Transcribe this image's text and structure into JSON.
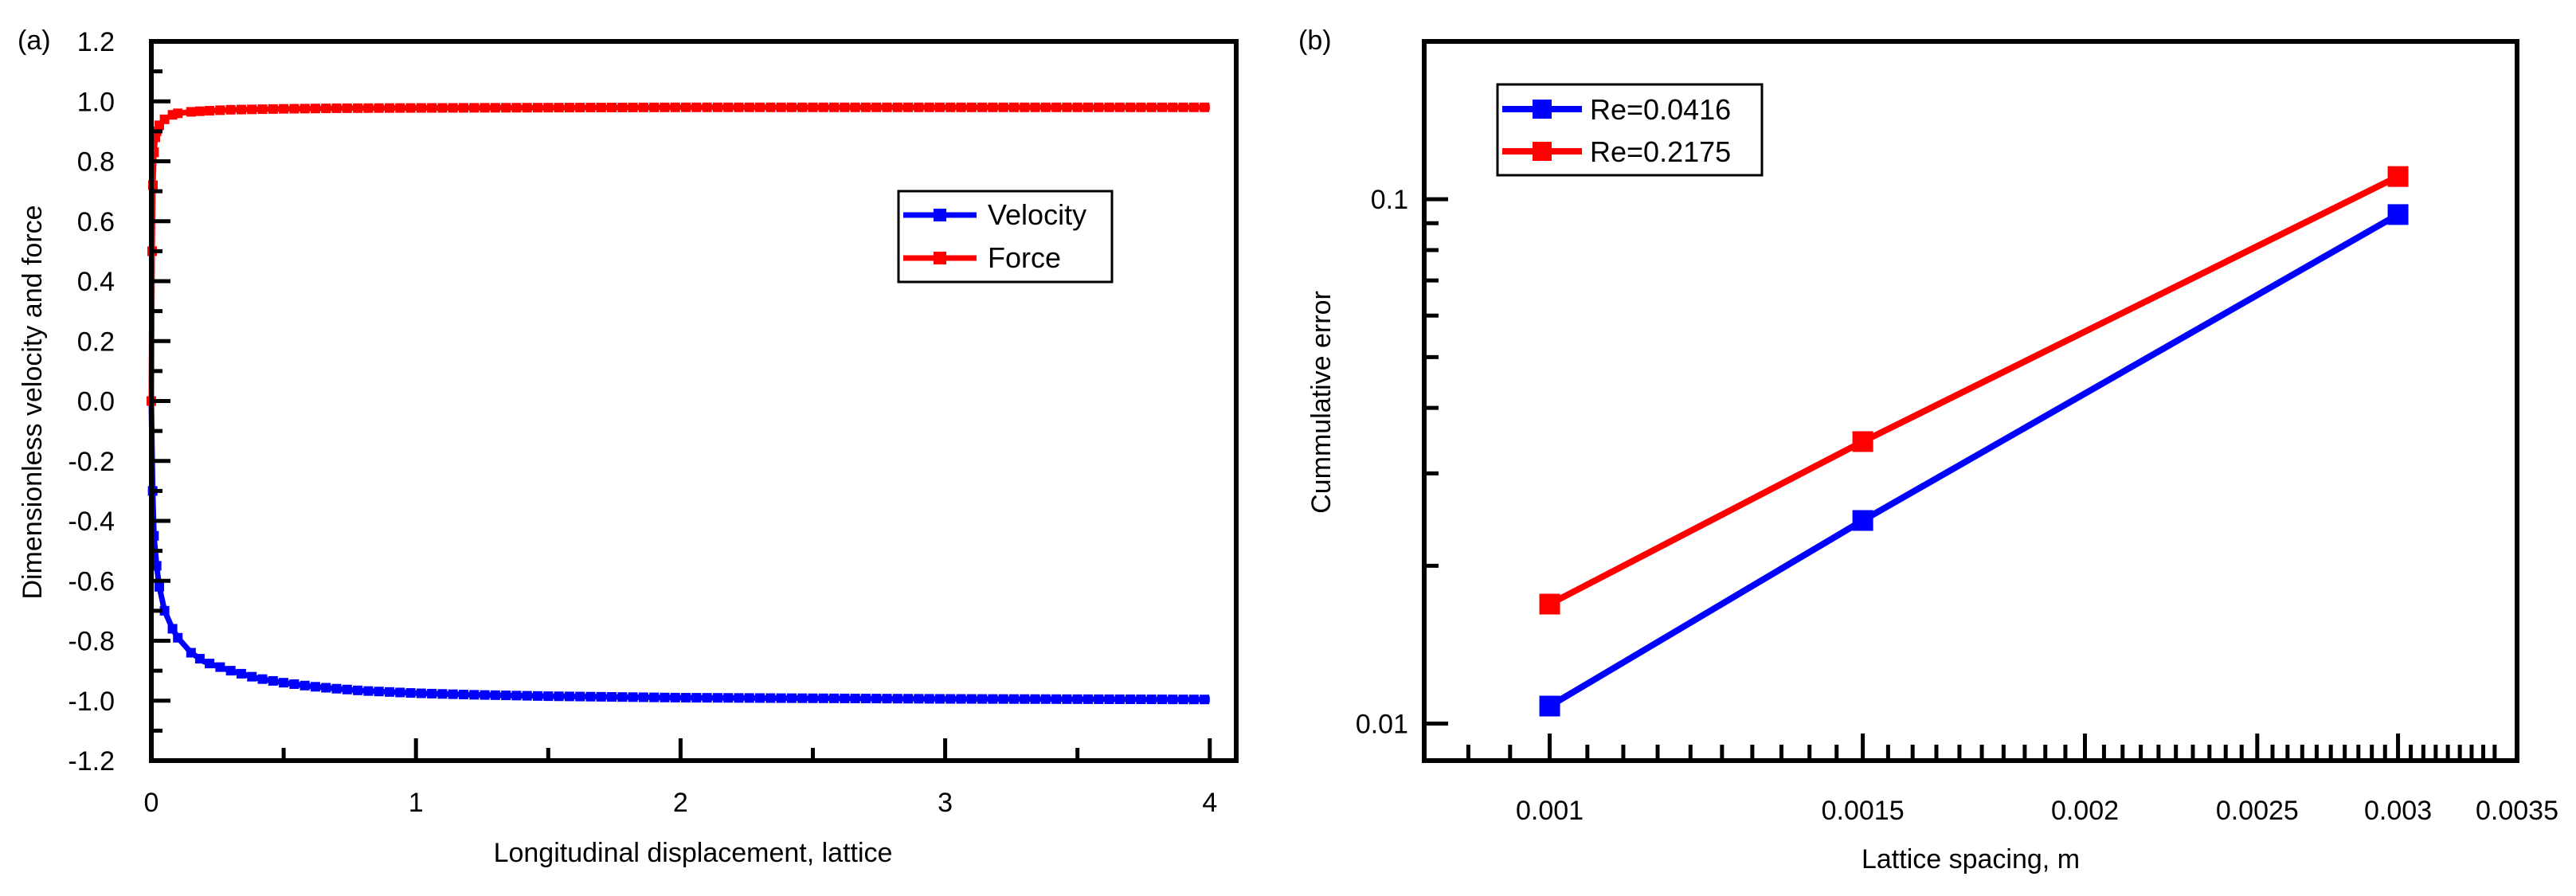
{
  "chart_data": [
    {
      "panel_label": "(a)",
      "type": "line",
      "title": "",
      "xlabel": "Longitudinal displacement, lattice",
      "ylabel": "Dimensionless velocity and force",
      "xlim": [
        0,
        4.1
      ],
      "ylim": [
        -1.2,
        1.2
      ],
      "xticks": [
        0,
        1,
        2,
        3,
        4
      ],
      "yticks": [
        1.2,
        1.0,
        0.8,
        0.6,
        0.4,
        0.2,
        0.0,
        -0.2,
        -0.4,
        -0.6,
        -0.8,
        -1.0,
        -1.2
      ],
      "ytick_labels": [
        "1.2",
        "1.0",
        "0.8",
        "0.6",
        "0.4",
        "0.2",
        "0.0",
        "-0.2",
        "-0.4",
        "-0.6",
        "-0.8",
        "-1.0",
        "-1.2"
      ],
      "grid": false,
      "legend_position": "center-right",
      "series": [
        {
          "name": "Velocity",
          "color": "#0000ff",
          "marker": "square",
          "x": [
            0,
            0.005,
            0.01,
            0.02,
            0.03,
            0.05,
            0.08,
            0.1,
            0.15,
            0.2,
            0.3,
            0.4,
            0.5,
            0.6,
            0.7,
            0.8,
            1.0,
            1.2,
            1.5,
            2.0,
            2.5,
            3.0,
            3.5,
            4.0
          ],
          "values": [
            0,
            -0.3,
            -0.45,
            -0.55,
            -0.62,
            -0.7,
            -0.76,
            -0.79,
            -0.84,
            -0.87,
            -0.9,
            -0.925,
            -0.94,
            -0.952,
            -0.96,
            -0.967,
            -0.975,
            -0.98,
            -0.985,
            -0.99,
            -0.992,
            -0.994,
            -0.995,
            -0.996
          ]
        },
        {
          "name": "Force",
          "color": "#ff0000",
          "marker": "square",
          "x": [
            0,
            0.003,
            0.006,
            0.01,
            0.015,
            0.02,
            0.03,
            0.05,
            0.08,
            0.1,
            0.15,
            0.2,
            0.3,
            0.5,
            0.7,
            1.0,
            1.5,
            2.0,
            2.5,
            3.0,
            3.5,
            4.0
          ],
          "values": [
            0,
            0.5,
            0.72,
            0.83,
            0.88,
            0.9,
            0.92,
            0.94,
            0.955,
            0.96,
            0.965,
            0.968,
            0.972,
            0.975,
            0.977,
            0.978,
            0.979,
            0.98,
            0.98,
            0.98,
            0.98,
            0.98
          ]
        }
      ]
    },
    {
      "panel_label": "(b)",
      "type": "line",
      "title": "",
      "xlabel": "Lattice spacing, m",
      "ylabel": "Cummulative error",
      "x_scale": "log",
      "y_scale": "log",
      "xlim": [
        0.00085,
        0.0035
      ],
      "ylim": [
        0.0085,
        0.2
      ],
      "xticks": [
        0.001,
        0.0015,
        0.002,
        0.0025,
        0.003,
        0.0035
      ],
      "xtick_labels": [
        "0.001",
        "0.0015",
        "0.002",
        "0.0025",
        "0.003",
        "0.0035"
      ],
      "yticks": [
        0.01,
        0.1
      ],
      "ytick_labels": [
        "0.01",
        "0.1"
      ],
      "grid": false,
      "legend_position": "top-left",
      "series": [
        {
          "name": "Re=0.0416",
          "color": "#0000ff",
          "marker": "square",
          "x": [
            0.001,
            0.0015,
            0.003
          ],
          "values": [
            0.0108,
            0.0244,
            0.0935
          ]
        },
        {
          "name": "Re=0.2175",
          "color": "#ff0000",
          "marker": "square",
          "x": [
            0.001,
            0.0015,
            0.003
          ],
          "values": [
            0.0169,
            0.0345,
            0.1105
          ]
        }
      ]
    }
  ]
}
